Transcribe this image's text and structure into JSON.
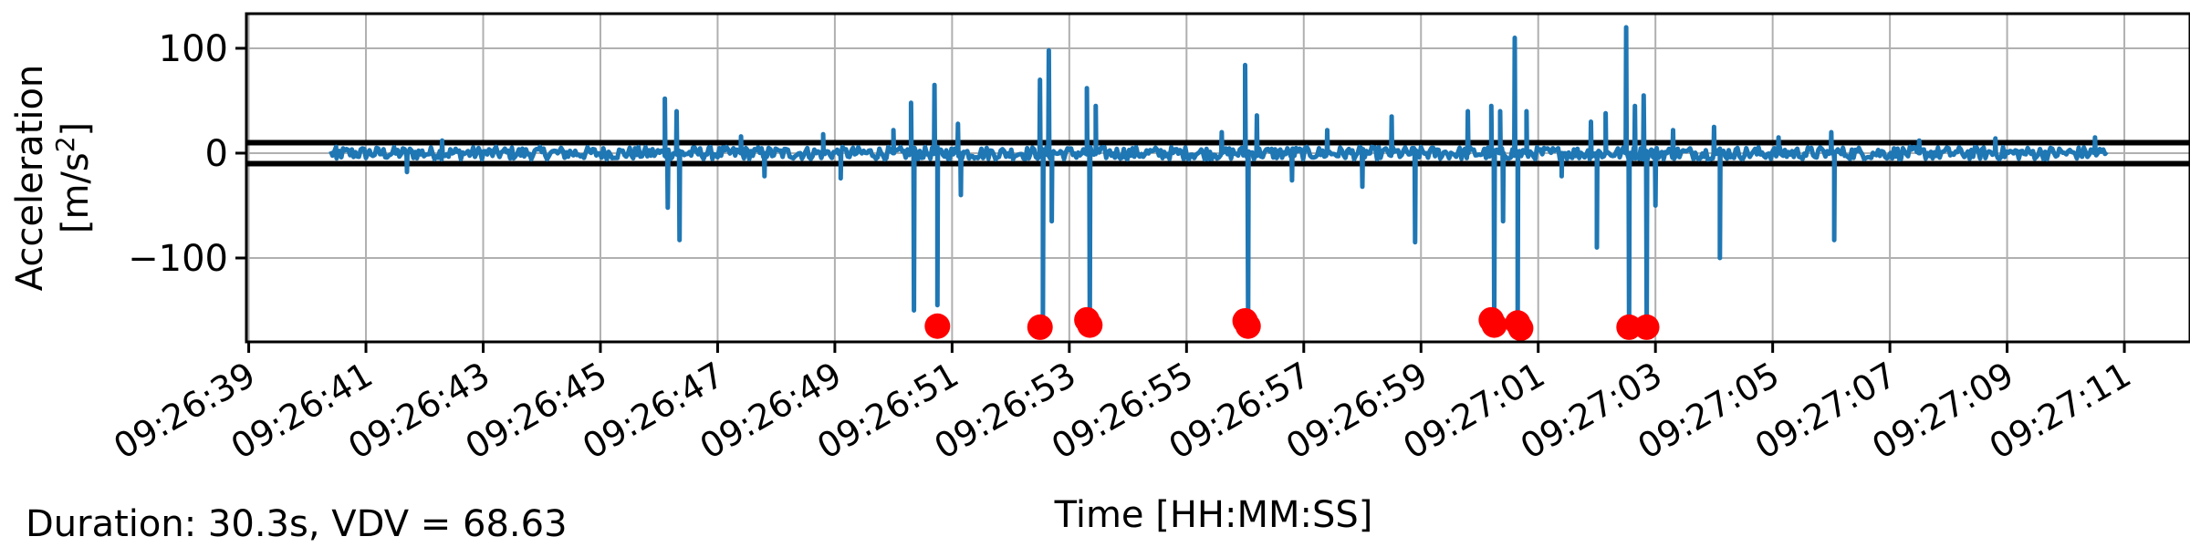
{
  "chart_data": {
    "type": "line",
    "xlabel": "Time [HH:MM:SS]",
    "ylabel_line1": "Acceleration",
    "ylabel_line2_prefix": "[m/s",
    "ylabel_line2_sup": "2",
    "ylabel_line2_suffix": "]",
    "ylim": [
      -180,
      133
    ],
    "xlim": [
      "09:26:38.96",
      "09:27:12.12"
    ],
    "grid": true,
    "xticks": [
      "09:26:39",
      "09:26:41",
      "09:26:43",
      "09:26:45",
      "09:26:47",
      "09:26:49",
      "09:26:51",
      "09:26:53",
      "09:26:55",
      "09:26:57",
      "09:26:59",
      "09:27:01",
      "09:27:03",
      "09:27:05",
      "09:27:07",
      "09:27:09",
      "09:27:11"
    ],
    "yticks": [
      {
        "value": 100,
        "label": "100"
      },
      {
        "value": 0,
        "label": "0"
      },
      {
        "value": -100,
        "label": "−100"
      }
    ],
    "thresholds": [
      10,
      -10
    ],
    "series": [
      {
        "color": "#1f77b4",
        "start": "09:26:40.4",
        "end": "09:27:10.7",
        "noise_amplitude": 6,
        "spikes": [
          {
            "t": "09:26:40.5",
            "y": -5
          },
          {
            "t": "09:26:41.7",
            "y": -18
          },
          {
            "t": "09:26:42.3",
            "y": 12
          },
          {
            "t": "09:26:46.1",
            "y": 52
          },
          {
            "t": "09:26:46.15",
            "y": -52
          },
          {
            "t": "09:26:46.3",
            "y": 40
          },
          {
            "t": "09:26:46.35",
            "y": -83
          },
          {
            "t": "09:26:47.4",
            "y": 16
          },
          {
            "t": "09:26:47.8",
            "y": -22
          },
          {
            "t": "09:26:48.8",
            "y": 18
          },
          {
            "t": "09:26:49.1",
            "y": -24
          },
          {
            "t": "09:26:50.0",
            "y": 22
          },
          {
            "t": "09:26:50.3",
            "y": 48
          },
          {
            "t": "09:26:50.35",
            "y": -150
          },
          {
            "t": "09:26:50.7",
            "y": 65
          },
          {
            "t": "09:26:50.75",
            "y": -145
          },
          {
            "t": "09:26:51.1",
            "y": 28
          },
          {
            "t": "09:26:51.15",
            "y": -40
          },
          {
            "t": "09:26:52.5",
            "y": 70
          },
          {
            "t": "09:26:52.55",
            "y": -160
          },
          {
            "t": "09:26:52.65",
            "y": 98
          },
          {
            "t": "09:26:52.7",
            "y": -65
          },
          {
            "t": "09:26:53.3",
            "y": 62
          },
          {
            "t": "09:26:53.35",
            "y": -160
          },
          {
            "t": "09:26:53.45",
            "y": 45
          },
          {
            "t": "09:26:55.6",
            "y": 20
          },
          {
            "t": "09:26:56.0",
            "y": 84
          },
          {
            "t": "09:26:56.05",
            "y": -160
          },
          {
            "t": "09:26:56.2",
            "y": 36
          },
          {
            "t": "09:26:56.8",
            "y": -26
          },
          {
            "t": "09:26:57.4",
            "y": 22
          },
          {
            "t": "09:26:58.0",
            "y": -32
          },
          {
            "t": "09:26:58.5",
            "y": 35
          },
          {
            "t": "09:26:58.9",
            "y": -85
          },
          {
            "t": "09:26:59.8",
            "y": 40
          },
          {
            "t": "09:27:00.2",
            "y": 45
          },
          {
            "t": "09:27:00.25",
            "y": -160
          },
          {
            "t": "09:27:00.35",
            "y": 40
          },
          {
            "t": "09:27:00.4",
            "y": -65
          },
          {
            "t": "09:27:00.6",
            "y": 110
          },
          {
            "t": "09:27:00.65",
            "y": -160
          },
          {
            "t": "09:27:00.8",
            "y": 40
          },
          {
            "t": "09:27:01.4",
            "y": -22
          },
          {
            "t": "09:27:01.9",
            "y": 30
          },
          {
            "t": "09:27:02.0",
            "y": -90
          },
          {
            "t": "09:27:02.15",
            "y": 38
          },
          {
            "t": "09:27:02.5",
            "y": 120
          },
          {
            "t": "09:27:02.55",
            "y": -165
          },
          {
            "t": "09:27:02.65",
            "y": 45
          },
          {
            "t": "09:27:02.8",
            "y": 55
          },
          {
            "t": "09:27:02.85",
            "y": -165
          },
          {
            "t": "09:27:03.0",
            "y": -50
          },
          {
            "t": "09:27:03.3",
            "y": 22
          },
          {
            "t": "09:27:04.0",
            "y": 25
          },
          {
            "t": "09:27:04.1",
            "y": -100
          },
          {
            "t": "09:27:05.1",
            "y": 15
          },
          {
            "t": "09:27:06.0",
            "y": 20
          },
          {
            "t": "09:27:06.05",
            "y": -83
          },
          {
            "t": "09:27:07.5",
            "y": 12
          },
          {
            "t": "09:27:08.8",
            "y": 14
          },
          {
            "t": "09:27:10.5",
            "y": 15
          }
        ]
      }
    ],
    "markers": {
      "color": "#ff0000",
      "points": [
        {
          "t": "09:26:50.75",
          "y": -165
        },
        {
          "t": "09:26:52.5",
          "y": -166
        },
        {
          "t": "09:26:53.3",
          "y": -159
        },
        {
          "t": "09:26:53.35",
          "y": -164
        },
        {
          "t": "09:26:56.0",
          "y": -160
        },
        {
          "t": "09:26:56.05",
          "y": -165
        },
        {
          "t": "09:27:00.2",
          "y": -159
        },
        {
          "t": "09:27:00.25",
          "y": -164
        },
        {
          "t": "09:27:00.65",
          "y": -162
        },
        {
          "t": "09:27:00.7",
          "y": -167
        },
        {
          "t": "09:27:02.55",
          "y": -166
        },
        {
          "t": "09:27:02.85",
          "y": -166
        }
      ]
    }
  },
  "footer": {
    "summary": "Duration: 30.3s, VDV = 68.63"
  }
}
